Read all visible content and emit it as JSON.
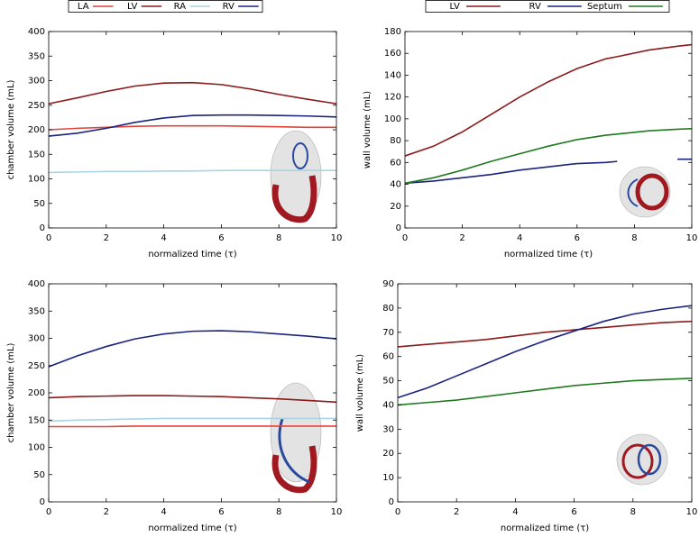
{
  "chart_data": [
    {
      "type": "line",
      "legend": "above",
      "x": [
        0,
        1,
        2,
        3,
        4,
        5,
        6,
        7,
        8,
        9,
        10
      ],
      "xlim": [
        0,
        10
      ],
      "xticks": [
        0,
        2,
        4,
        6,
        8,
        10
      ],
      "ylim": [
        0,
        400
      ],
      "yticks": [
        0,
        50,
        100,
        150,
        200,
        250,
        300,
        350,
        400
      ],
      "xlabel": "normalized time (τ)",
      "ylabel": "chamber volume (mL)",
      "series": [
        {
          "name": "LA",
          "color": "#e0443a",
          "values": [
            200,
            203,
            205,
            207,
            208,
            208,
            208,
            207,
            206,
            205,
            205
          ]
        },
        {
          "name": "LV",
          "color": "#8b1a1a",
          "values": [
            253,
            265,
            278,
            289,
            295,
            296,
            292,
            283,
            272,
            262,
            253
          ]
        },
        {
          "name": "RA",
          "color": "#a8d4e6",
          "values": [
            113,
            114,
            115,
            115,
            116,
            116,
            117,
            117,
            117,
            117,
            117
          ]
        },
        {
          "name": "RV",
          "color": "#1a237e",
          "values": [
            187,
            193,
            203,
            215,
            224,
            229,
            230,
            230,
            229,
            228,
            226
          ]
        }
      ]
    },
    {
      "type": "line",
      "legend": "above",
      "x": [
        0,
        1,
        2,
        3,
        4,
        5,
        6,
        7,
        7.4,
        8.5,
        9.5,
        10
      ],
      "xlim": [
        0,
        10
      ],
      "xticks": [
        0,
        2,
        4,
        6,
        8,
        10
      ],
      "ylim": [
        0,
        180
      ],
      "yticks": [
        0,
        20,
        40,
        60,
        80,
        100,
        120,
        140,
        160,
        180
      ],
      "xlabel": "normalized time (τ)",
      "ylabel": "wall volume (mL)",
      "series": [
        {
          "name": "LV",
          "color": "#8b1a1a",
          "values": [
            66,
            75,
            88,
            104,
            120,
            134,
            146,
            155,
            157,
            163,
            166.5,
            168
          ]
        },
        {
          "name": "RV",
          "color": "#1a237e",
          "values": [
            41,
            43,
            46,
            49,
            53,
            56,
            59,
            60,
            61,
            null,
            63,
            63
          ]
        },
        {
          "name": "Septum",
          "color": "#1e7a1e",
          "values": [
            41,
            46,
            53,
            61,
            68,
            75,
            81,
            85,
            86,
            89,
            90.5,
            91
          ]
        }
      ]
    },
    {
      "type": "line",
      "x": [
        0,
        1,
        2,
        3,
        4,
        5,
        6,
        7,
        8,
        9,
        10
      ],
      "xlim": [
        0,
        10
      ],
      "xticks": [
        0,
        2,
        4,
        6,
        8,
        10
      ],
      "ylim": [
        0,
        400
      ],
      "yticks": [
        0,
        50,
        100,
        150,
        200,
        250,
        300,
        350,
        400
      ],
      "xlabel": "normalized time (τ)",
      "ylabel": "chamber volume (mL)",
      "series": [
        {
          "name": "LA",
          "color": "#e0443a",
          "values": [
            138,
            138,
            138,
            139,
            139,
            139,
            139,
            139,
            139,
            139,
            139
          ]
        },
        {
          "name": "LV",
          "color": "#8b1a1a",
          "values": [
            191,
            193,
            194,
            195,
            195,
            194,
            193,
            191,
            189,
            186,
            183
          ]
        },
        {
          "name": "RA",
          "color": "#a8d4e6",
          "values": [
            148,
            150,
            151,
            152,
            153,
            153,
            153,
            153,
            153,
            153,
            153
          ]
        },
        {
          "name": "RV",
          "color": "#1a237e",
          "values": [
            248,
            268,
            285,
            299,
            308,
            313,
            314,
            312,
            308,
            304,
            299
          ]
        }
      ]
    },
    {
      "type": "line",
      "x": [
        0,
        1,
        2,
        3,
        4,
        5,
        6,
        7,
        8,
        9,
        10
      ],
      "xlim": [
        0,
        10
      ],
      "xticks": [
        0,
        2,
        4,
        6,
        8,
        10
      ],
      "ylim": [
        0,
        90
      ],
      "yticks": [
        0,
        10,
        20,
        30,
        40,
        50,
        60,
        70,
        80,
        90
      ],
      "xlabel": "normalized time (τ)",
      "ylabel": "wall volume (mL)",
      "series": [
        {
          "name": "LV",
          "color": "#8b1a1a",
          "values": [
            64,
            65,
            66,
            67,
            68.5,
            70,
            71,
            72,
            73,
            74,
            74.5
          ]
        },
        {
          "name": "RV",
          "color": "#1a237e",
          "values": [
            43,
            47,
            52,
            57,
            62,
            66.5,
            70.5,
            74.5,
            77.5,
            79.5,
            81
          ]
        },
        {
          "name": "Septum",
          "color": "#1e7a1e",
          "values": [
            40,
            41,
            42,
            43.5,
            45,
            46.5,
            48,
            49,
            50,
            50.5,
            51
          ]
        }
      ]
    }
  ]
}
